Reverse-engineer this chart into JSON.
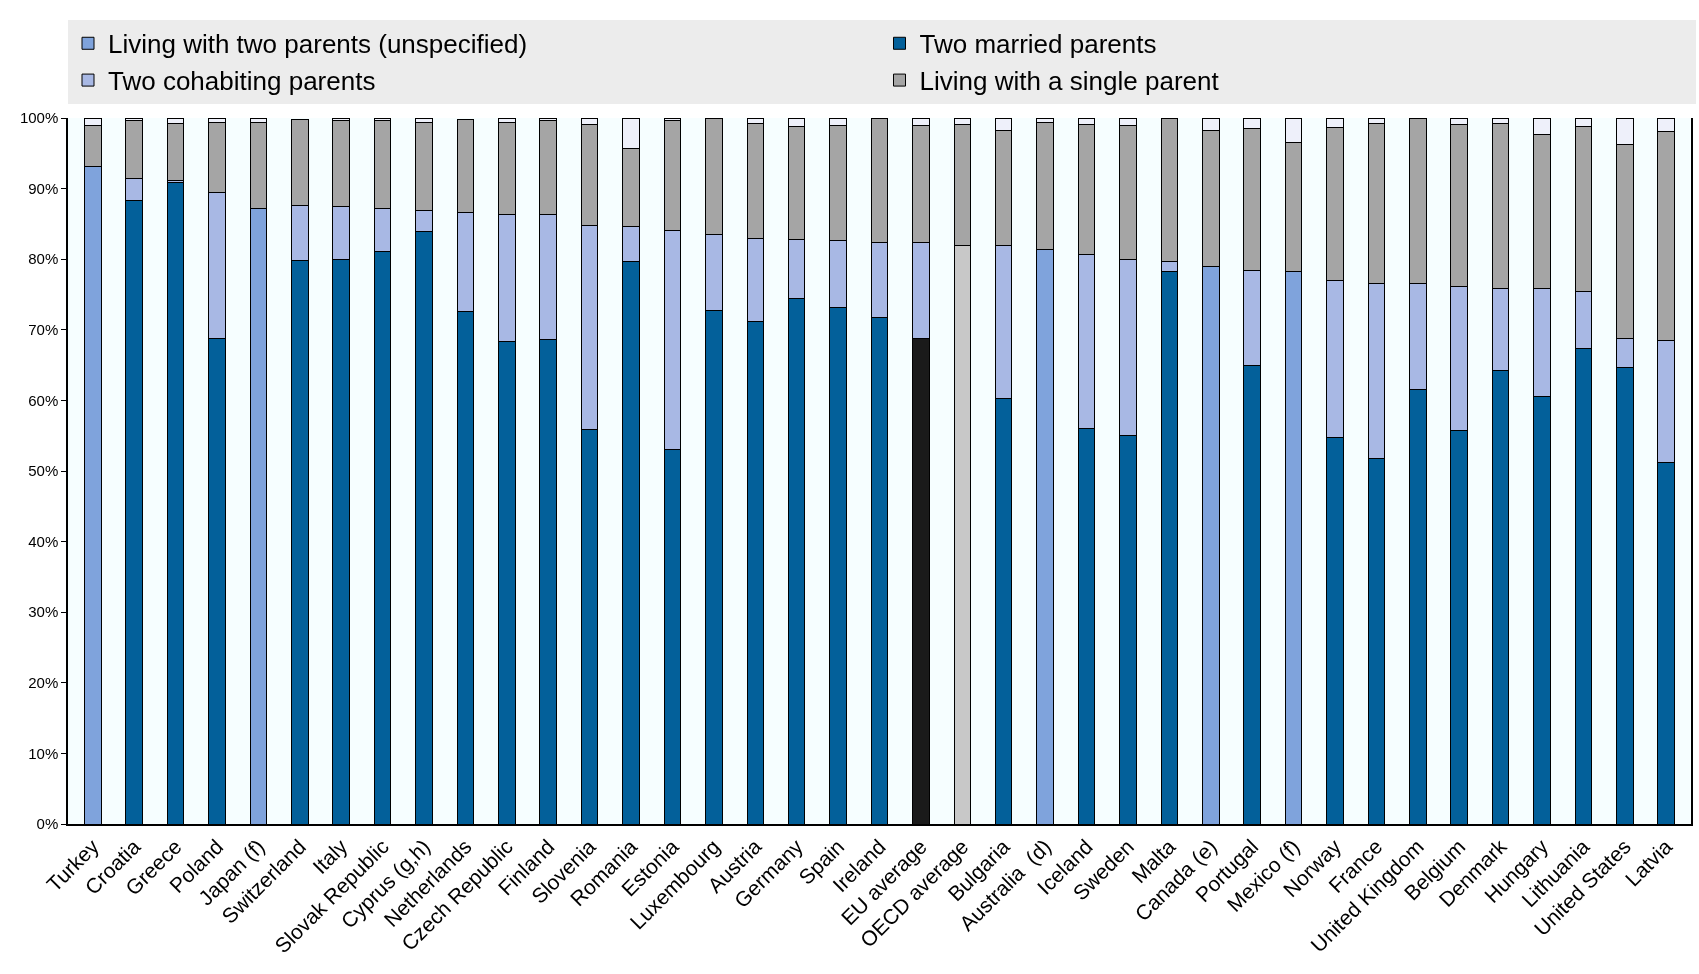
{
  "chart_data": {
    "type": "bar",
    "stacked": true,
    "legend": "top",
    "grid": false,
    "categories": [
      "Turkey",
      "Croatia",
      "Greece",
      "Poland",
      "Japan (f)",
      "Switzerland",
      "Italy",
      "Slovak Republic",
      "Cyprus (g,h)",
      "Netherlands",
      "Czech Republic",
      "Finland",
      "Slovenia",
      "Romania",
      "Estonia",
      "Luxembourg",
      "Austria",
      "Germany",
      "Spain",
      "Ireland",
      "EU average",
      "OECD average",
      "Bulgaria",
      "Australia  (d)",
      "Iceland",
      "Sweden",
      "Malta",
      "Canada (e)",
      "Portugal",
      "Mexico (f)",
      "Norway",
      "France",
      "United Kingdom",
      "Belgium",
      "Denmark",
      "Hungary",
      "Lithuania",
      "United States",
      "Latvia"
    ],
    "ylim": [
      0,
      100
    ],
    "yticks": [
      {
        "value": 0,
        "label": "0%"
      },
      {
        "value": 10,
        "label": "10%"
      },
      {
        "value": 20,
        "label": "20%"
      },
      {
        "value": 30,
        "label": "30%"
      },
      {
        "value": 40,
        "label": "40%"
      },
      {
        "value": 50,
        "label": "50%"
      },
      {
        "value": 60,
        "label": "60%"
      },
      {
        "value": 70,
        "label": "70%"
      },
      {
        "value": 80,
        "label": "80%"
      },
      {
        "value": 90,
        "label": "90%"
      },
      {
        "value": 100,
        "label": "100%"
      }
    ],
    "series": [
      {
        "name": "Living with two parents (unspecified)",
        "color": "#7fa3dc",
        "colors": [
          "#7fa3dc",
          null,
          null,
          null,
          "#7fa3dc",
          null,
          null,
          null,
          null,
          null,
          null,
          null,
          null,
          null,
          null,
          null,
          null,
          null,
          null,
          null,
          null,
          "#c8c8c8",
          null,
          "#7fa3dc",
          null,
          null,
          null,
          "#7fa3dc",
          null,
          "#7fa3dc",
          null,
          null,
          null,
          null,
          null,
          null,
          null,
          null,
          null
        ],
        "values": [
          93.2,
          null,
          null,
          null,
          87.2,
          null,
          null,
          null,
          null,
          null,
          null,
          null,
          null,
          null,
          null,
          null,
          null,
          null,
          null,
          null,
          null,
          81.9,
          null,
          81.4,
          null,
          null,
          null,
          79.0,
          null,
          78.3,
          null,
          null,
          null,
          null,
          null,
          null,
          null,
          null,
          null
        ]
      },
      {
        "name": "Two married parents",
        "color": "#03609a",
        "colors": [
          null,
          "#03609a",
          "#03609a",
          "#03609a",
          null,
          "#03609a",
          "#03609a",
          "#03609a",
          "#03609a",
          "#03609a",
          "#03609a",
          "#03609a",
          "#03609a",
          "#03609a",
          "#03609a",
          "#03609a",
          "#03609a",
          "#03609a",
          "#03609a",
          "#03609a",
          "#1a1a1a",
          null,
          "#03609a",
          null,
          "#03609a",
          "#03609a",
          "#03609a",
          null,
          "#03609a",
          null,
          "#03609a",
          "#03609a",
          "#03609a",
          "#03609a",
          "#03609a",
          "#03609a",
          "#03609a",
          "#03609a",
          "#03609a"
        ],
        "values": [
          null,
          88.3,
          90.8,
          68.7,
          null,
          79.8,
          79.9,
          81.1,
          83.9,
          72.6,
          68.3,
          68.6,
          55.9,
          79.7,
          53.0,
          72.7,
          71.2,
          74.4,
          73.2,
          71.8,
          68.7,
          null,
          60.2,
          null,
          56.0,
          55.0,
          78.3,
          null,
          65.0,
          null,
          54.8,
          51.8,
          61.6,
          55.8,
          64.2,
          60.5,
          67.4,
          64.7,
          51.2
        ]
      },
      {
        "name": "Two cohabiting parents",
        "color": "#a8b8e4",
        "values": [
          null,
          3.2,
          0.4,
          20.8,
          null,
          7.8,
          7.5,
          6.1,
          3.0,
          14.0,
          18.0,
          17.7,
          28.9,
          4.9,
          31.0,
          10.8,
          11.8,
          8.4,
          9.4,
          10.5,
          13.6,
          null,
          21.8,
          null,
          24.6,
          25.0,
          1.4,
          null,
          13.4,
          null,
          22.2,
          24.8,
          15.0,
          20.3,
          11.7,
          15.4,
          8.0,
          4.0,
          17.3
        ]
      },
      {
        "name": "Living with a single parent",
        "color": "#a5a5a5",
        "values": [
          5.8,
          8.1,
          8.0,
          9.9,
          12.2,
          12.2,
          12.3,
          12.4,
          12.5,
          13.2,
          13.1,
          13.3,
          14.3,
          11.1,
          15.6,
          16.5,
          16.2,
          16.0,
          16.4,
          17.7,
          16.7,
          17.2,
          16.2,
          17.9,
          18.5,
          19.0,
          20.2,
          19.2,
          20.1,
          18.2,
          21.6,
          22.6,
          23.3,
          23.0,
          23.3,
          21.8,
          23.4,
          27.5,
          29.6
        ]
      },
      {
        "color": "#eef0fa",
        "values": [
          1.0,
          0.4,
          0.8,
          0.6,
          0.6,
          null,
          0.3,
          0.4,
          0.6,
          null,
          0.6,
          0.4,
          0.9,
          4.3,
          0.4,
          null,
          0.8,
          1.2,
          1.0,
          null,
          1.0,
          0.9,
          1.8,
          0.7,
          0.9,
          1.0,
          0.1,
          1.8,
          1.5,
          3.5,
          1.4,
          0.8,
          0.1,
          0.9,
          0.8,
          2.3,
          1.2,
          3.8,
          1.9
        ]
      }
    ]
  }
}
